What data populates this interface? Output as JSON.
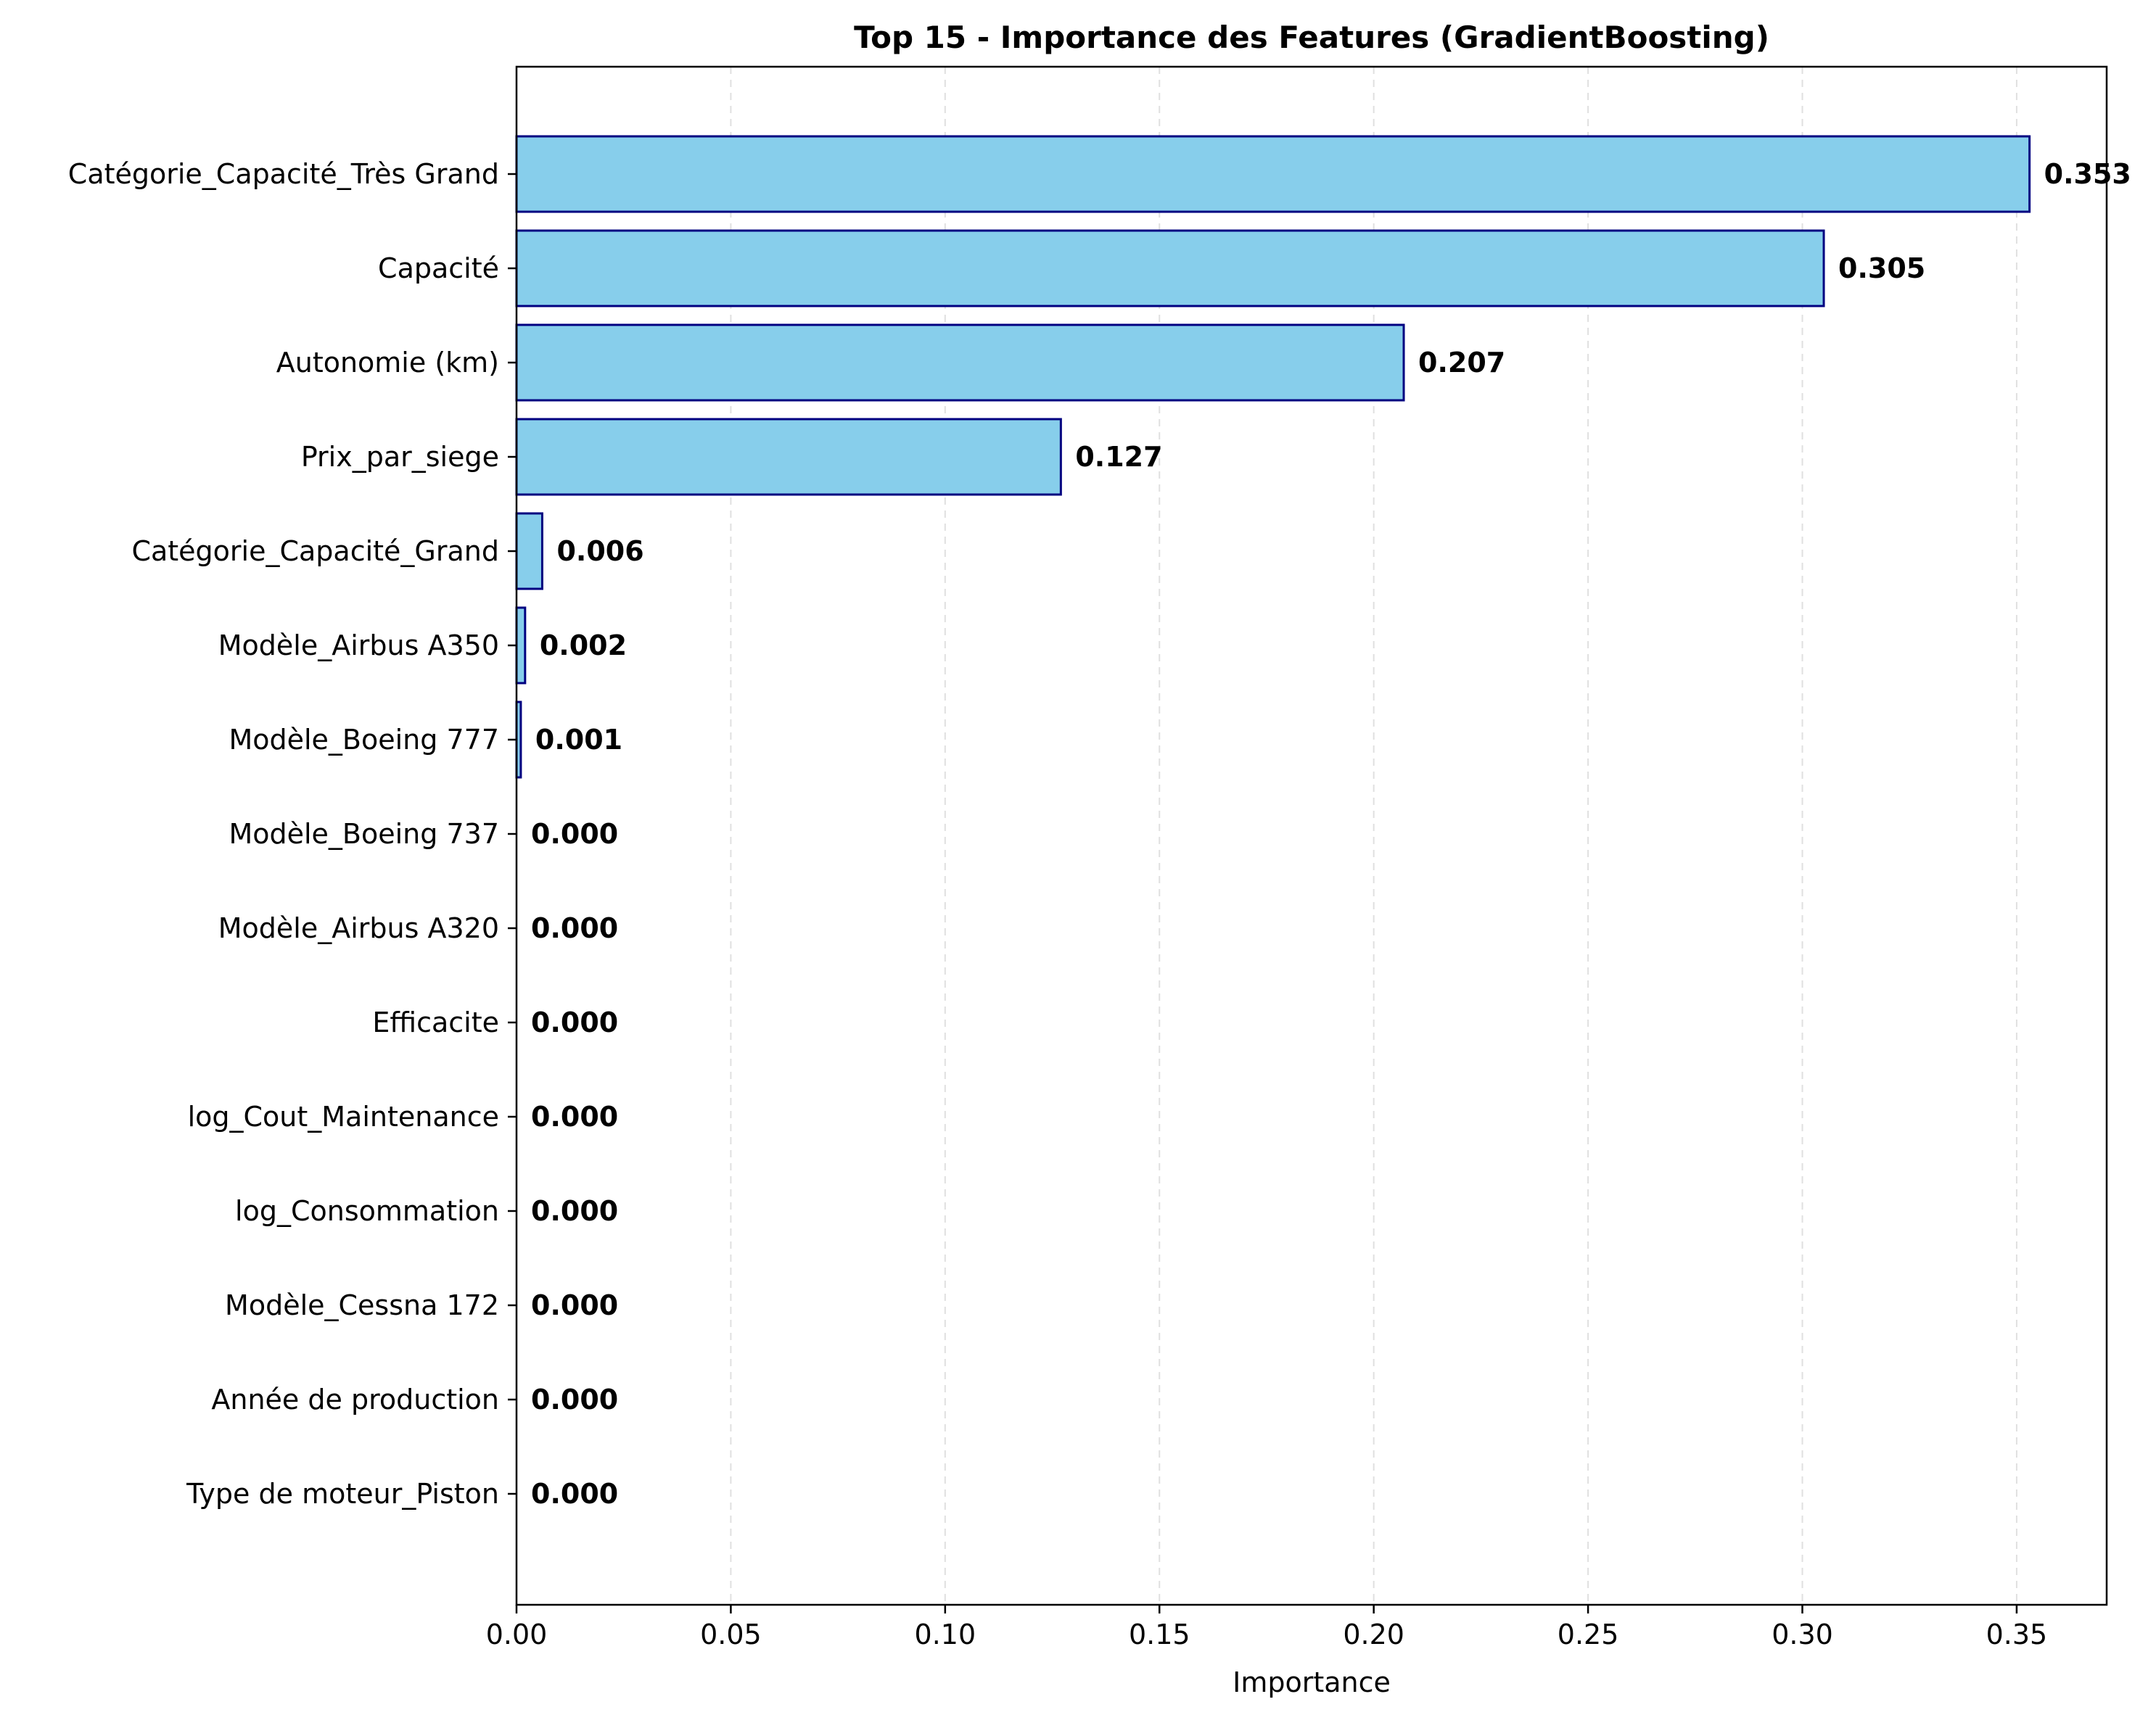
{
  "chart_data": {
    "type": "bar",
    "orientation": "horizontal",
    "title": "Top 15 - Importance des Features (GradientBoosting)",
    "xlabel": "Importance",
    "ylabel": "",
    "xlim": [
      0,
      0.371
    ],
    "xticks": [
      "0.00",
      "0.05",
      "0.10",
      "0.15",
      "0.20",
      "0.25",
      "0.30",
      "0.35"
    ],
    "grid": "x, dashed",
    "bar_color": "#87CEEB",
    "bar_edge_color": "#000080",
    "categories": [
      "Catégorie_Capacité_Très Grand",
      "Capacité",
      "Autonomie (km)",
      "Prix_par_siege",
      "Catégorie_Capacité_Grand",
      "Modèle_Airbus A350",
      "Modèle_Boeing 777",
      "Modèle_Boeing 737",
      "Modèle_Airbus A320",
      "Efficacite",
      "log_Cout_Maintenance",
      "log_Consommation",
      "Modèle_Cessna 172",
      "Année de production",
      "Type de moteur_Piston"
    ],
    "values": [
      0.353,
      0.305,
      0.207,
      0.127,
      0.006,
      0.002,
      0.001,
      0.0,
      0.0,
      0.0,
      0.0,
      0.0,
      0.0,
      0.0,
      0.0
    ],
    "value_labels": [
      "0.353",
      "0.305",
      "0.207",
      "0.127",
      "0.006",
      "0.002",
      "0.001",
      "0.000",
      "0.000",
      "0.000",
      "0.000",
      "0.000",
      "0.000",
      "0.000",
      "0.000"
    ]
  }
}
